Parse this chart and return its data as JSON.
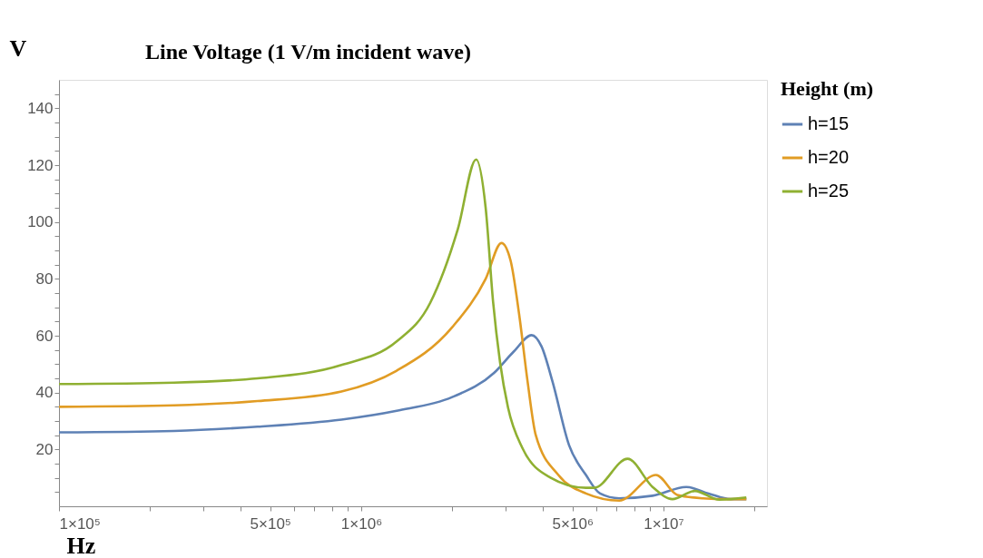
{
  "chart_data": {
    "type": "line",
    "title": "Line Voltage (1 V/m incident wave)",
    "xlabel": "Hz",
    "ylabel": "V",
    "legend_title": "Height (m)",
    "legend": "right",
    "log": "x",
    "grid": false,
    "marker": "none",
    "line_style": "solid",
    "xlim": [
      100000,
      22000000
    ],
    "ylim": [
      0,
      150
    ],
    "xticks": [
      {
        "value": 100000,
        "label": "1×10⁵"
      },
      {
        "value": 200000,
        "label": null
      },
      {
        "value": 300000,
        "label": null
      },
      {
        "value": 400000,
        "label": null
      },
      {
        "value": 500000,
        "label": "5×10⁵"
      },
      {
        "value": 600000,
        "label": null
      },
      {
        "value": 700000,
        "label": null
      },
      {
        "value": 800000,
        "label": null
      },
      {
        "value": 900000,
        "label": null
      },
      {
        "value": 1000000,
        "label": "1×10⁶"
      },
      {
        "value": 2000000,
        "label": null
      },
      {
        "value": 3000000,
        "label": null
      },
      {
        "value": 4000000,
        "label": null
      },
      {
        "value": 5000000,
        "label": "5×10⁶"
      },
      {
        "value": 6000000,
        "label": null
      },
      {
        "value": 7000000,
        "label": null
      },
      {
        "value": 8000000,
        "label": null
      },
      {
        "value": 9000000,
        "label": null
      },
      {
        "value": 10000000,
        "label": "1×10⁷"
      },
      {
        "value": 20000000,
        "label": null
      }
    ],
    "yticks": [
      {
        "value": 5,
        "label": null
      },
      {
        "value": 10,
        "label": null
      },
      {
        "value": 15,
        "label": null
      },
      20,
      {
        "value": 25,
        "label": null
      },
      {
        "value": 30,
        "label": null
      },
      {
        "value": 35,
        "label": null
      },
      40,
      {
        "value": 45,
        "label": null
      },
      {
        "value": 50,
        "label": null
      },
      {
        "value": 55,
        "label": null
      },
      60,
      {
        "value": 65,
        "label": null
      },
      {
        "value": 70,
        "label": null
      },
      {
        "value": 75,
        "label": null
      },
      80,
      {
        "value": 85,
        "label": null
      },
      {
        "value": 90,
        "label": null
      },
      {
        "value": 95,
        "label": null
      },
      100,
      {
        "value": 105,
        "label": null
      },
      {
        "value": 110,
        "label": null
      },
      {
        "value": 115,
        "label": null
      },
      120,
      {
        "value": 125,
        "label": null
      },
      {
        "value": 130,
        "label": null
      },
      {
        "value": 135,
        "label": null
      },
      140,
      {
        "value": 145,
        "label": null
      }
    ],
    "series": [
      {
        "name": "h=15",
        "color": "#5e81b5",
        "x": [
          100000,
          240000,
          454000,
          860000,
          1310000,
          2000000,
          2750000,
          3200000,
          3660000,
          3950000,
          4290000,
          4870000,
          5540000,
          6170000,
          7140000,
          9200000,
          11900000,
          14100000,
          16700000,
          18800000
        ],
        "values": [
          26,
          26.5,
          28,
          30.5,
          33.6,
          38.4,
          46.9,
          54.5,
          60.2,
          56.2,
          44,
          21.5,
          11,
          4.5,
          2.8,
          3.7,
          6.8,
          4.5,
          2.5,
          2.5
        ]
      },
      {
        "name": "h=20",
        "color": "#e19c24",
        "x": [
          100000,
          240000,
          454000,
          860000,
          1310000,
          2000000,
          2580000,
          2910000,
          3120000,
          3330000,
          3550000,
          3780000,
          4490000,
          5540000,
          7140000,
          9450000,
          11100000,
          13500000,
          16300000,
          18800000
        ],
        "values": [
          35,
          35.5,
          37,
          40.4,
          47.7,
          63,
          80,
          92.6,
          86.4,
          67.5,
          44,
          25,
          11,
          4.5,
          2,
          11,
          4,
          2.8,
          2.5,
          2.5
        ]
      },
      {
        "name": "h=25",
        "color": "#8fb032",
        "x": [
          100000,
          240000,
          454000,
          860000,
          1310000,
          1690000,
          2090000,
          2400000,
          2580000,
          2730000,
          2880000,
          3060000,
          3410000,
          4210000,
          5540000,
          5900000,
          7610000,
          9200000,
          10700000,
          12700000,
          15300000,
          18800000
        ],
        "values": [
          43,
          43.5,
          45,
          49.7,
          58,
          71.5,
          97.7,
          122,
          105,
          72,
          50.6,
          34.7,
          20.6,
          10.2,
          6.5,
          6.5,
          16.7,
          6.8,
          2.5,
          5.4,
          2.3,
          3.1
        ]
      }
    ]
  }
}
